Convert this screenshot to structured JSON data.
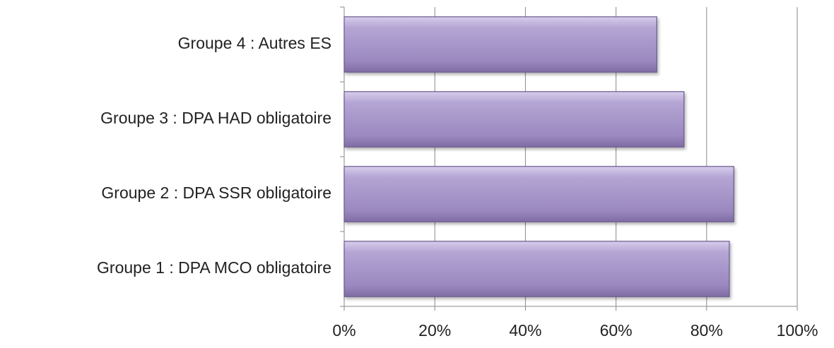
{
  "chart_data": {
    "type": "barh",
    "categories": [
      "Groupe 1 : DPA MCO obligatoire",
      "Groupe 2 : DPA SSR obligatoire",
      "Groupe 3 : DPA HAD obligatoire",
      "Groupe 4 : Autres ES"
    ],
    "values": [
      85,
      86,
      75,
      69
    ],
    "color": "#a493c6",
    "xlim": [
      0,
      100
    ],
    "xticks": [
      {
        "value": 0,
        "label": "0%"
      },
      {
        "value": 20,
        "label": "20%"
      },
      {
        "value": 40,
        "label": "40%"
      },
      {
        "value": 60,
        "label": "60%"
      },
      {
        "value": 80,
        "label": "80%"
      },
      {
        "value": 100,
        "label": "100%"
      }
    ],
    "grid": true
  }
}
